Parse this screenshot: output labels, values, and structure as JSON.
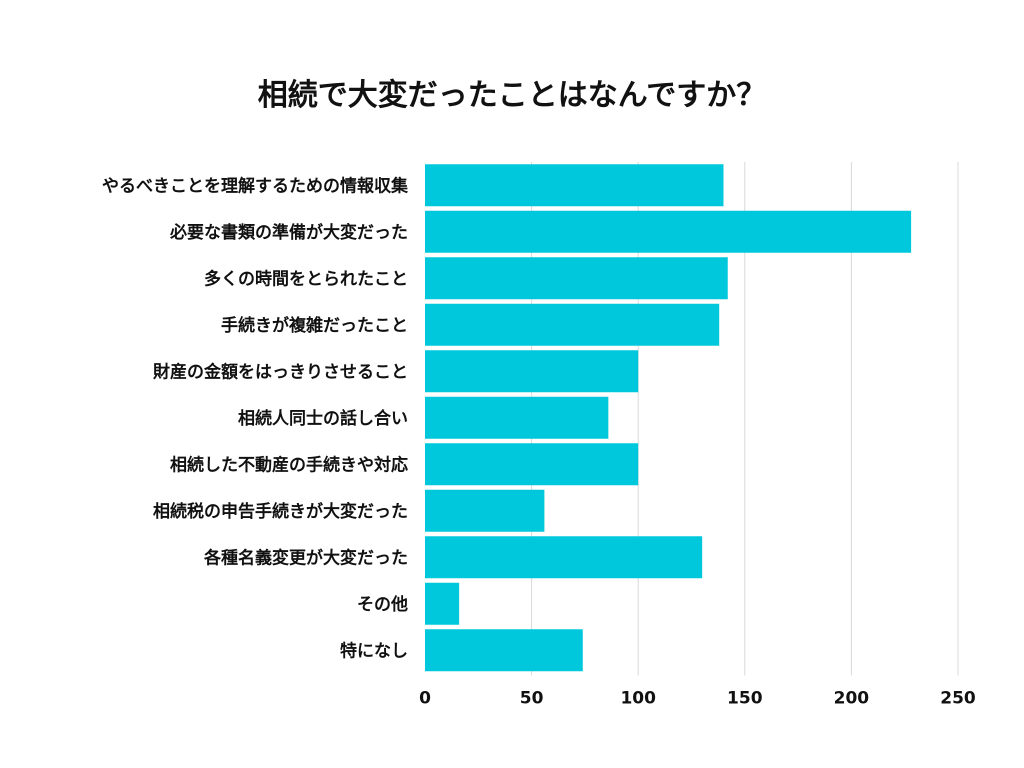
{
  "chart_data": {
    "type": "bar",
    "orientation": "horizontal",
    "title": "相続で大変だったことはなんですか？",
    "xlabel": "",
    "ylabel": "",
    "categories": [
      "やるべきことを理解するための情報収集",
      "必要な書類の準備が大変だった",
      "多くの時間をとられたこと",
      "手続きが複雑だったこと",
      "財産の金額をはっきりさせること",
      "相続人同士の話し合い",
      "相続した不動産の手続きや対応",
      "相続税の申告手続きが大変だった",
      "各種名義変更が大変だった",
      "その他",
      "特になし"
    ],
    "values": [
      140,
      228,
      142,
      138,
      100,
      86,
      100,
      56,
      130,
      16,
      74
    ],
    "xlim": [
      0,
      250
    ],
    "xticks": [
      0,
      50,
      100,
      150,
      200,
      250
    ],
    "grid": true,
    "legend": "none",
    "bar_color": "#00c8dc",
    "grid_color": "#d9d9d9"
  }
}
